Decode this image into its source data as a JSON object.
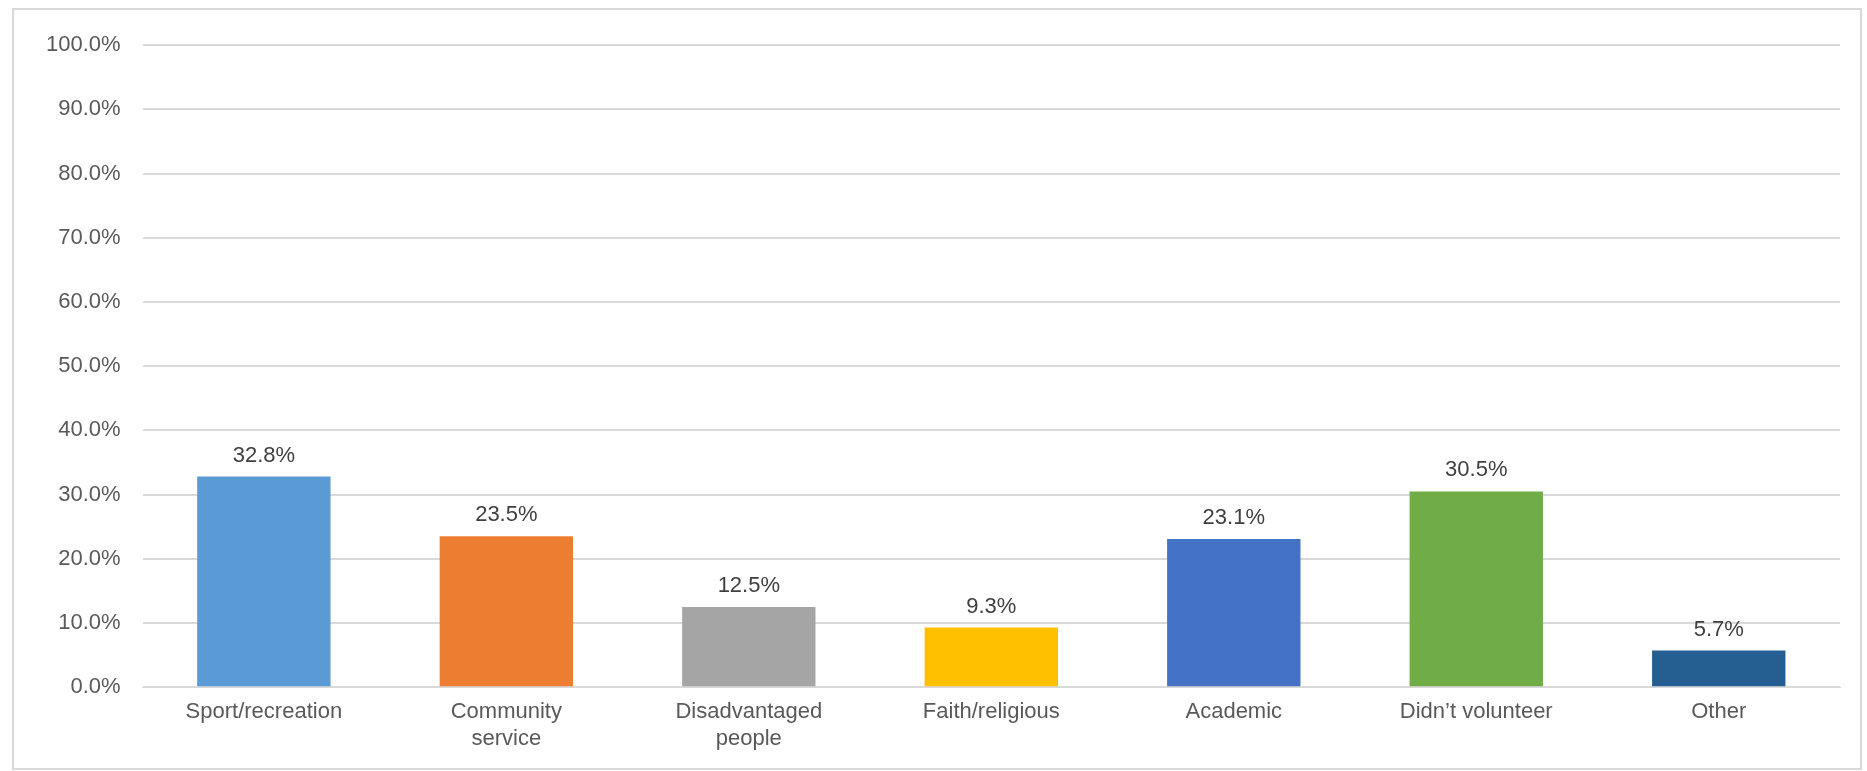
{
  "chart_data": {
    "type": "bar",
    "categories": [
      "Sport/recreation",
      "Community service",
      "Disadvantaged people",
      "Faith/religious",
      "Academic",
      "Didn’t volunteer",
      "Other"
    ],
    "values": [
      32.8,
      23.5,
      12.5,
      9.3,
      23.1,
      30.5,
      5.7
    ],
    "colors": [
      "#5b9bd5",
      "#ed7d31",
      "#a5a5a5",
      "#ffc000",
      "#4472c4",
      "#70ad47",
      "#255e91"
    ],
    "ylim": [
      0,
      100
    ],
    "yticks": [
      {
        "value": 0,
        "label": "0.0%"
      },
      {
        "value": 10,
        "label": "10.0%"
      },
      {
        "value": 20,
        "label": "20.0%"
      },
      {
        "value": 30,
        "label": "30.0%"
      },
      {
        "value": 40,
        "label": "40.0%"
      },
      {
        "value": 50,
        "label": "50.0%"
      },
      {
        "value": 60,
        "label": "60.0%"
      },
      {
        "value": 70,
        "label": "70.0%"
      },
      {
        "value": 80,
        "label": "80.0%"
      },
      {
        "value": 90,
        "label": "90.0%"
      },
      {
        "value": 100,
        "label": "100.0%"
      }
    ],
    "value_labels": [
      "32.8%",
      "23.5%",
      "12.5%",
      "9.3%",
      "23.1%",
      "30.5%",
      "5.7%"
    ],
    "grid": "y",
    "legend": false
  }
}
